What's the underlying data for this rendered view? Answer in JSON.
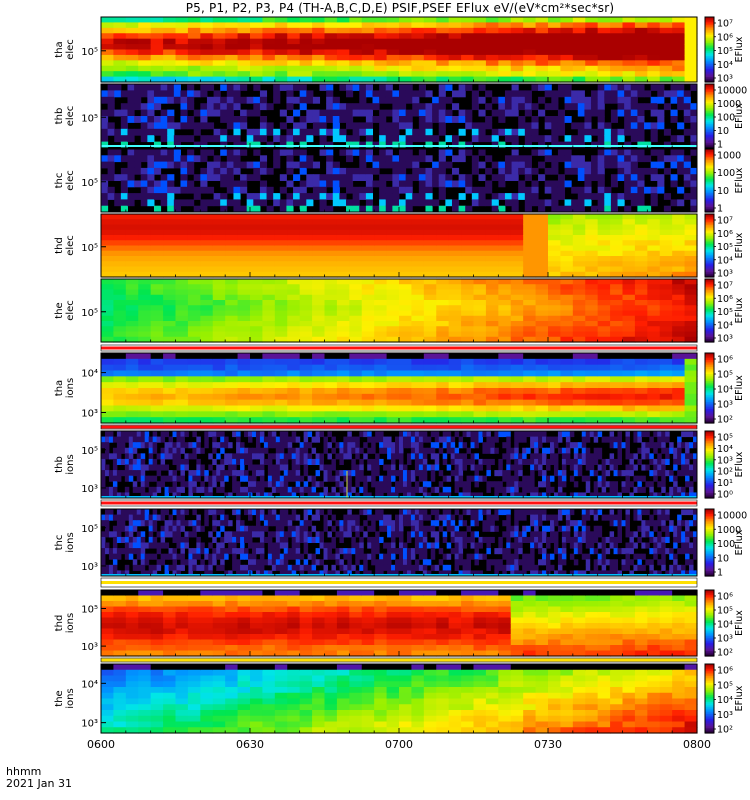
{
  "title": "P5, P1, P2, P3, P4  (TH-A,B,C,D,E) PSIF,PSEF EFlux eV/(eV*cm²*sec*sr)",
  "footer": {
    "label": "hhmm",
    "date": "2021 Jan 31"
  },
  "chart_data": {
    "type": "heatmap",
    "x_ticks": [
      "0600",
      "0630",
      "0700",
      "0730",
      "0800"
    ],
    "colorbar_label": "EFlux",
    "panels": [
      {
        "id": "tha-elec",
        "ylabel": [
          "tha",
          "elec"
        ],
        "yticks": [
          "10⁵"
        ],
        "cbar": [
          "10⁷",
          "10⁶",
          "10⁵",
          "10⁴",
          "10³"
        ],
        "pattern": "elec_hot"
      },
      {
        "id": "thb-elec",
        "ylabel": [
          "thb",
          "elec"
        ],
        "yticks": [
          "10⁵"
        ],
        "cbar": [
          "10000",
          "1000",
          "100",
          "10",
          "1"
        ],
        "pattern": "noise_low"
      },
      {
        "id": "thc-elec",
        "ylabel": [
          "thc",
          "elec"
        ],
        "yticks": [
          "10⁵"
        ],
        "cbar": [
          "1000",
          "100",
          "10",
          "1"
        ],
        "pattern": "noise_low"
      },
      {
        "id": "thd-elec",
        "ylabel": [
          "thd",
          "elec"
        ],
        "yticks": [
          "10⁵"
        ],
        "cbar": [
          "10⁷",
          "10⁶",
          "10⁵",
          "10⁴",
          "10³"
        ],
        "pattern": "thd_elec"
      },
      {
        "id": "the-elec",
        "ylabel": [
          "the",
          "elec"
        ],
        "yticks": [
          "10⁵"
        ],
        "cbar": [
          "10⁷",
          "10⁶",
          "10⁵",
          "10⁴",
          "10³"
        ],
        "pattern": "the_elec"
      },
      {
        "id": "tha-ions",
        "ylabel": [
          "tha",
          "ions"
        ],
        "yticks": [
          "10⁴",
          "10³"
        ],
        "cbar": [
          "10⁶",
          "10⁵",
          "10⁴",
          "10³",
          "10²"
        ],
        "pattern": "ions_main"
      },
      {
        "id": "thb-ions",
        "ylabel": [
          "thb",
          "ions"
        ],
        "yticks": [
          "10⁵",
          "10³"
        ],
        "cbar": [
          "10⁵",
          "10⁴",
          "10³",
          "10²",
          "10¹",
          "10⁰"
        ],
        "pattern": "noise_ions"
      },
      {
        "id": "thc-ions",
        "ylabel": [
          "thc",
          "ions"
        ],
        "yticks": [
          "10⁵",
          "10³"
        ],
        "cbar": [
          "10000",
          "1000",
          "100",
          "10",
          "1"
        ],
        "pattern": "noise_ions"
      },
      {
        "id": "thd-ions",
        "ylabel": [
          "thd",
          "ions"
        ],
        "yticks": [
          "10⁵",
          "10³"
        ],
        "cbar": [
          "10⁶",
          "10⁵",
          "10⁴",
          "10³",
          "10²"
        ],
        "pattern": "thd_ions"
      },
      {
        "id": "the-ions",
        "ylabel": [
          "the",
          "ions"
        ],
        "yticks": [
          "10⁴",
          "10³"
        ],
        "cbar": [
          "10⁶",
          "10⁵",
          "10⁴",
          "10³",
          "10²"
        ],
        "pattern": "the_ions"
      }
    ]
  }
}
